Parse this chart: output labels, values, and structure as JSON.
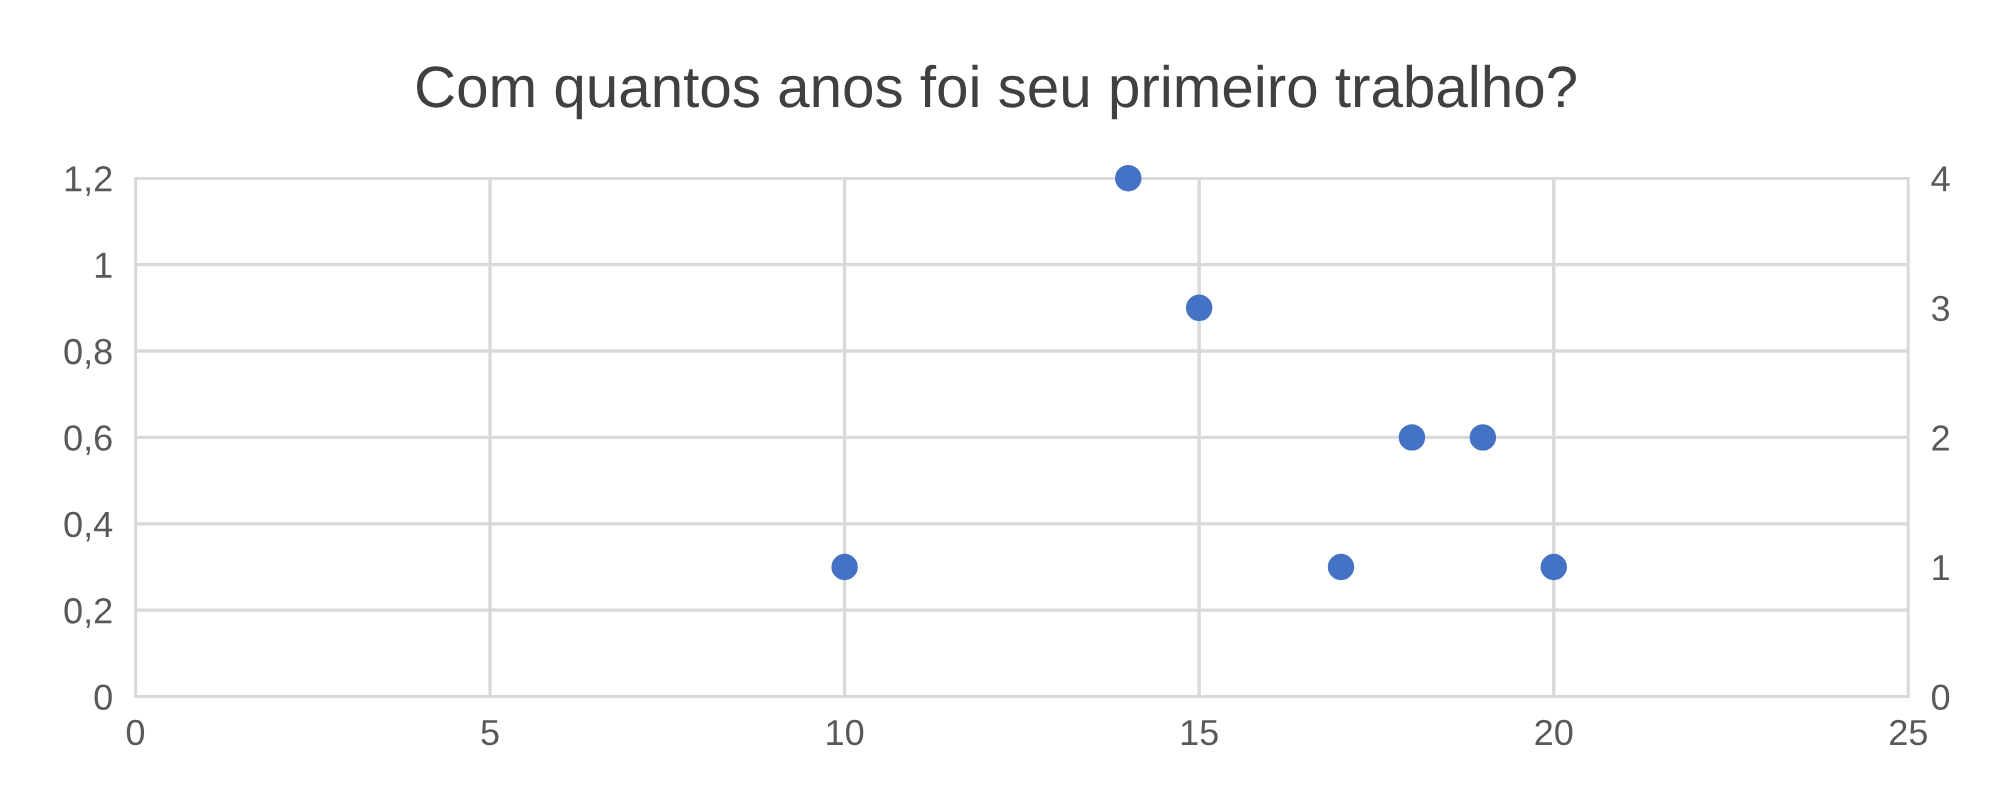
{
  "chart_data": {
    "type": "scatter",
    "title": "Com quantos anos foi seu primeiro trabalho?",
    "x": [
      10,
      14,
      15,
      17,
      18,
      19,
      20
    ],
    "series": [
      {
        "color": "#4472c4",
        "values": [
          1,
          4,
          3,
          1,
          2,
          2,
          1
        ],
        "axis": "y2"
      }
    ],
    "xlim": [
      0,
      25
    ],
    "xticks": [
      0,
      5,
      10,
      15,
      20,
      25
    ],
    "ylim": [
      0,
      1.2
    ],
    "yticks": [
      0,
      {
        "value": 0.2,
        "label": "0,2"
      },
      {
        "value": 0.4,
        "label": "0,4"
      },
      {
        "value": 0.6,
        "label": "0,6"
      },
      {
        "value": 0.8,
        "label": "0,8"
      },
      1,
      {
        "value": 1.2,
        "label": "1,2"
      }
    ],
    "y2lim": [
      0,
      4
    ],
    "y2ticks": [
      0,
      1,
      2,
      3,
      4
    ],
    "grid": true,
    "marker": "circle"
  }
}
